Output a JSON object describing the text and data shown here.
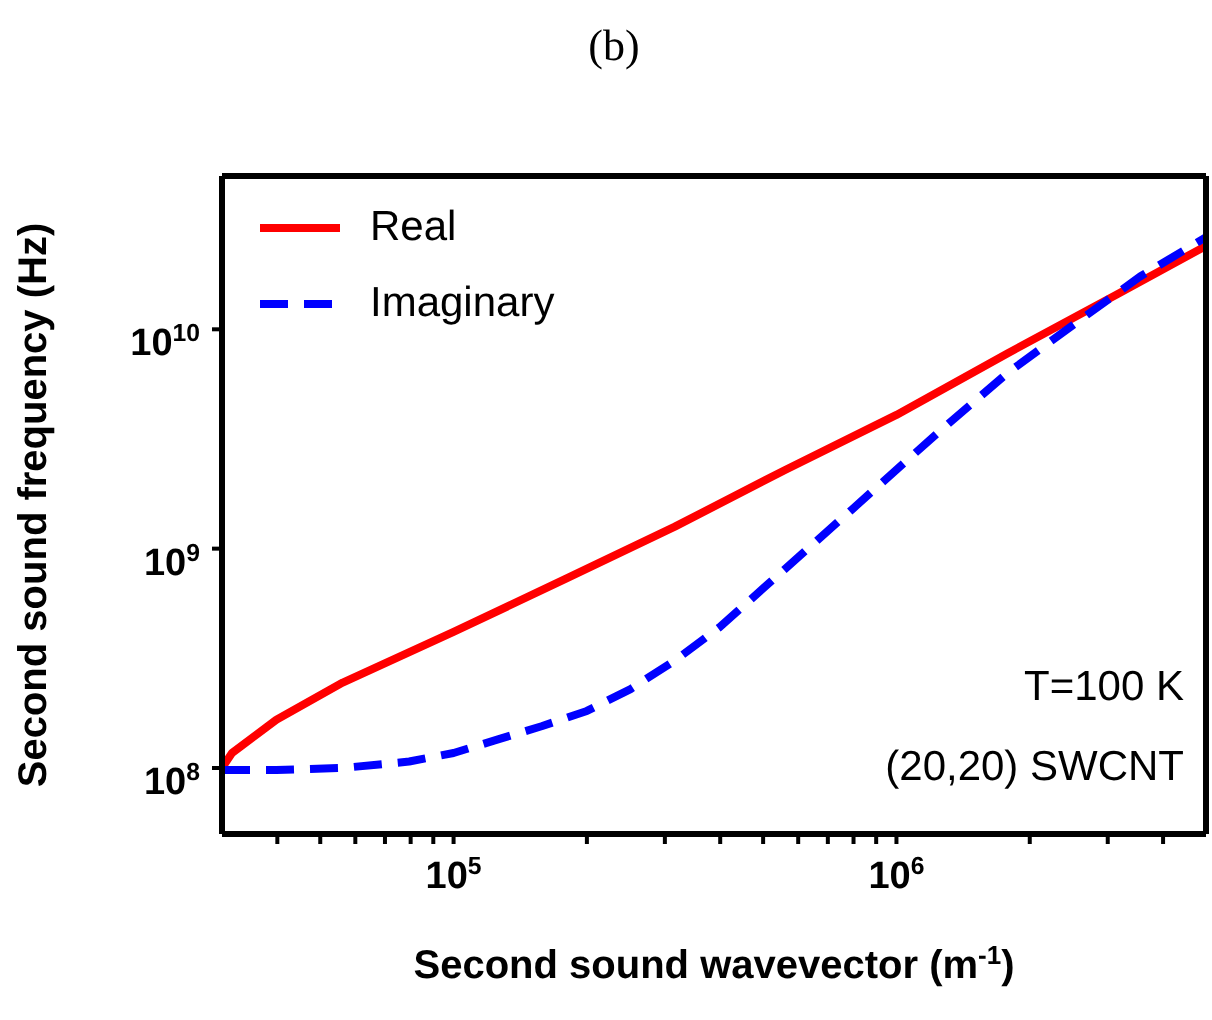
{
  "chart_data": {
    "type": "line",
    "title": "(b)",
    "xlabel": "Second sound wavevector (m$^{-1}$)",
    "ylabel": "Second sound frequency (Hz)",
    "log": "xy",
    "grid": false,
    "legend": "top left",
    "marker": "none",
    "xlim": [
      30000,
      5000000
    ],
    "ylim": [
      50000000,
      50000000000
    ],
    "xticks": [
      {
        "value": 40000,
        "label": null
      },
      {
        "value": 50000,
        "label": null
      },
      {
        "value": 60000,
        "label": null
      },
      {
        "value": 70000,
        "label": null
      },
      {
        "value": 80000,
        "label": null
      },
      {
        "value": 90000,
        "label": null
      },
      {
        "value": 100000,
        "label": "10$^{5}$"
      },
      {
        "value": 200000,
        "label": null
      },
      {
        "value": 300000,
        "label": null
      },
      {
        "value": 400000,
        "label": null
      },
      {
        "value": 500000,
        "label": null
      },
      {
        "value": 600000,
        "label": null
      },
      {
        "value": 700000,
        "label": null
      },
      {
        "value": 800000,
        "label": null
      },
      {
        "value": 900000,
        "label": null
      },
      {
        "value": 1000000,
        "label": "10$^{6}$"
      },
      {
        "value": 2000000,
        "label": null
      },
      {
        "value": 3000000,
        "label": null
      },
      {
        "value": 4000000,
        "label": null
      }
    ],
    "yticks": [
      {
        "value": 100000000,
        "label": "10$^{8}$"
      },
      {
        "value": 1000000000,
        "label": "10$^{9}$"
      },
      {
        "value": 10000000000,
        "label": "10$^{10}$"
      }
    ],
    "series": [
      {
        "name": "Real",
        "color": "#ff0000",
        "line_style": "solid",
        "x": [
          30000,
          31600,
          39800,
          56200,
          100000,
          178000,
          316000,
          562000,
          1000000,
          1780000,
          3160000,
          5000000
        ],
        "values": [
          100000000,
          117000000,
          166000000,
          245000000,
          417000000,
          724000000,
          1260000000,
          2290000000,
          4070000000,
          7760000000,
          14500000000,
          24000000000
        ]
      },
      {
        "name": "Imaginary",
        "color": "#0000ff",
        "line_style": "dashed",
        "x": [
          30000,
          39800,
          56200,
          79400,
          100000,
          126000,
          158000,
          200000,
          251000,
          316000,
          398000,
          501000,
          631000,
          794000,
          1000000,
          1260000,
          1780000,
          2510000,
          3550000,
          5000000
        ],
        "values": [
          98000000,
          98000000,
          100000000,
          107000000,
          117000000,
          135000000,
          155000000,
          182000000,
          229000000,
          309000000,
          437000000,
          661000000,
          1000000000,
          1510000000,
          2290000000,
          3470000000,
          6310000000,
          10500000000,
          17400000000,
          26300000000
        ]
      }
    ],
    "annotations": [
      "T=100 K",
      "(20,20) SWCNT"
    ]
  }
}
